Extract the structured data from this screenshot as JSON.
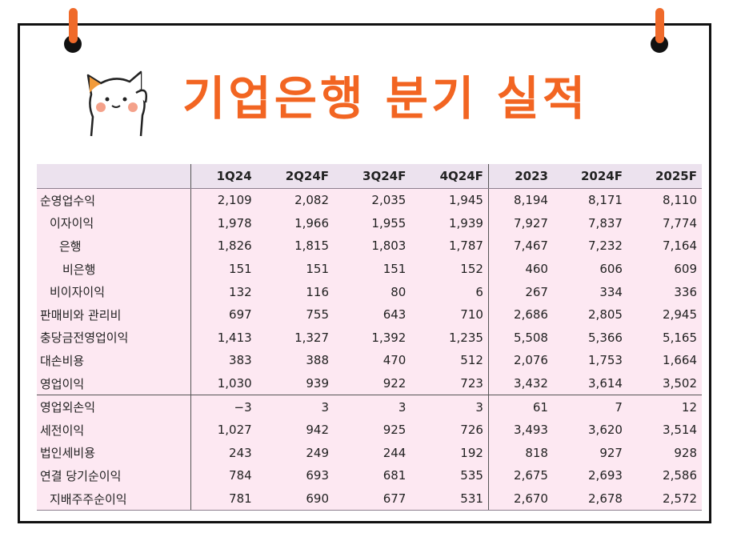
{
  "title": "기업은행 분기 실적",
  "colors": {
    "accent": "#f26522",
    "table_bg": "#fde8f2",
    "header_bg": "#ece2ee"
  },
  "table": {
    "headers": [
      "",
      "1Q24",
      "2Q24F",
      "3Q24F",
      "4Q24F",
      "2023",
      "2024F",
      "2025F"
    ],
    "rows": [
      {
        "label": "순영업수익",
        "values": [
          "2,109",
          "2,082",
          "2,035",
          "1,945",
          "8,194",
          "8,171",
          "8,110"
        ]
      },
      {
        "label": "이자이익",
        "values": [
          "1,978",
          "1,966",
          "1,955",
          "1,939",
          "7,927",
          "7,837",
          "7,774"
        ]
      },
      {
        "label": "은행",
        "values": [
          "1,826",
          "1,815",
          "1,803",
          "1,787",
          "7,467",
          "7,232",
          "7,164"
        ]
      },
      {
        "label": "비은행",
        "values": [
          "151",
          "151",
          "151",
          "152",
          "460",
          "606",
          "609"
        ]
      },
      {
        "label": "비이자이익",
        "values": [
          "132",
          "116",
          "80",
          "6",
          "267",
          "334",
          "336"
        ]
      },
      {
        "label": "판매비와 관리비",
        "values": [
          "697",
          "755",
          "643",
          "710",
          "2,686",
          "2,805",
          "2,945"
        ]
      },
      {
        "label": "충당금전영업이익",
        "values": [
          "1,413",
          "1,327",
          "1,392",
          "1,235",
          "5,508",
          "5,366",
          "5,165"
        ]
      },
      {
        "label": "대손비용",
        "values": [
          "383",
          "388",
          "470",
          "512",
          "2,076",
          "1,753",
          "1,664"
        ]
      },
      {
        "label": "영업이익",
        "values": [
          "1,030",
          "939",
          "922",
          "723",
          "3,432",
          "3,614",
          "3,502"
        ]
      },
      {
        "label": "영업외손익",
        "values": [
          "−3",
          "3",
          "3",
          "3",
          "61",
          "7",
          "12"
        ]
      },
      {
        "label": "세전이익",
        "values": [
          "1,027",
          "942",
          "925",
          "726",
          "3,493",
          "3,620",
          "3,514"
        ]
      },
      {
        "label": "법인세비용",
        "values": [
          "243",
          "249",
          "244",
          "192",
          "818",
          "927",
          "928"
        ]
      },
      {
        "label": "연결 당기순이익",
        "values": [
          "784",
          "693",
          "681",
          "535",
          "2,675",
          "2,693",
          "2,586"
        ]
      },
      {
        "label": "지배주주순이익",
        "values": [
          "781",
          "690",
          "677",
          "531",
          "2,670",
          "2,678",
          "2,572"
        ]
      }
    ]
  }
}
